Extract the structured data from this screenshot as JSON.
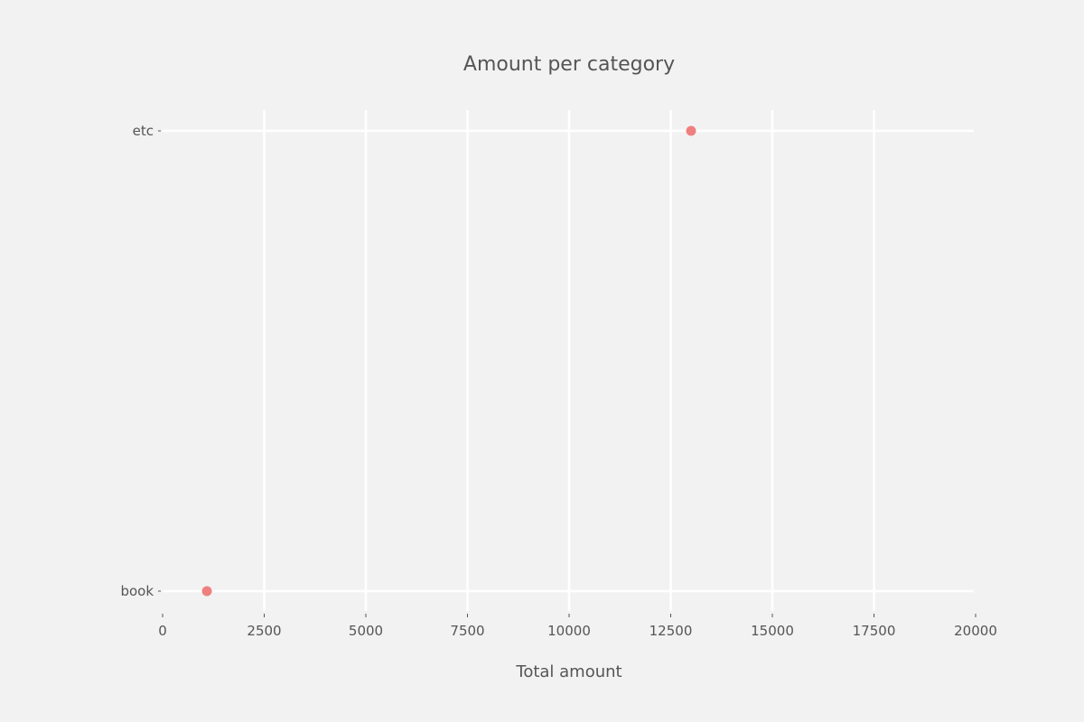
{
  "chart_data": {
    "type": "scatter",
    "title": "Amount per category",
    "xlabel": "Total amount",
    "ylabel": "",
    "xlim": [
      0,
      20000
    ],
    "x_ticks": [
      0,
      2500,
      5000,
      7500,
      10000,
      12500,
      15000,
      17500,
      20000
    ],
    "categories": [
      "book",
      "etc"
    ],
    "series": [
      {
        "color": "#f08080",
        "points": [
          {
            "category": "etc",
            "x": 13000
          },
          {
            "category": "book",
            "x": 1090
          }
        ]
      }
    ],
    "grid": true,
    "background_color": "#f2f2f2",
    "grid_color": "#ffffff",
    "text_color": "#555555"
  }
}
